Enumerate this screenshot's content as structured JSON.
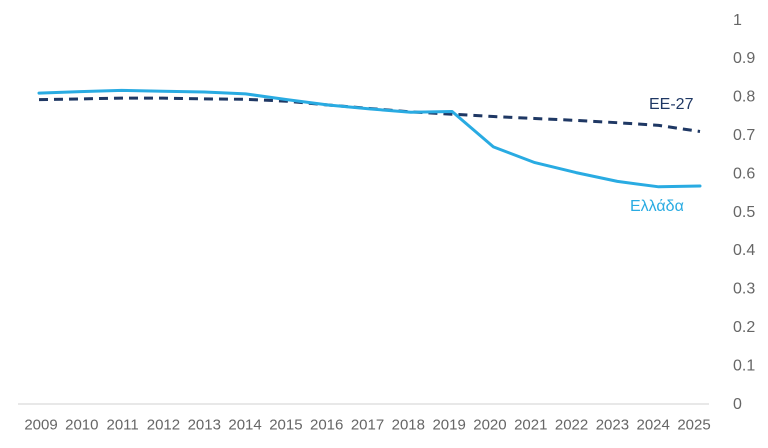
{
  "chart_data": {
    "type": "line",
    "title": "",
    "xlabel": "",
    "ylabel": "",
    "x": [
      2009,
      2010,
      2011,
      2012,
      2013,
      2014,
      2015,
      2016,
      2017,
      2018,
      2019,
      2020,
      2021,
      2022,
      2023,
      2024,
      2025
    ],
    "x_tick_labels": [
      "2009",
      "2010",
      "2011",
      "2012",
      "2013",
      "2014",
      "2015",
      "2016",
      "2017",
      "2018",
      "2019",
      "2020",
      "2021",
      "2022",
      "2023",
      "2024",
      "2025"
    ],
    "series": [
      {
        "name": "EE-27",
        "color": "#1F3864",
        "line_style": "dashed",
        "values": [
          0.79,
          0.792,
          0.794,
          0.794,
          0.792,
          0.791,
          0.786,
          0.776,
          0.767,
          0.758,
          0.752,
          0.746,
          0.741,
          0.736,
          0.73,
          0.723,
          0.707
        ]
      },
      {
        "name": "Ελλάδα",
        "color": "#29ABE2",
        "line_style": "solid",
        "values": [
          0.807,
          0.811,
          0.814,
          0.812,
          0.81,
          0.805,
          0.79,
          0.776,
          0.766,
          0.757,
          0.759,
          0.667,
          0.626,
          0.6,
          0.577,
          0.563,
          0.565
        ]
      }
    ],
    "ylim": [
      0,
      1
    ],
    "yticks": [
      0,
      0.1,
      0.2,
      0.3,
      0.4,
      0.5,
      0.6,
      0.7,
      0.8,
      0.9,
      1
    ],
    "ytick_labels": [
      "0",
      "0.1",
      "0.2",
      "0.3",
      "0.4",
      "0.5",
      "0.6",
      "0.7",
      "0.8",
      "0.9",
      "1"
    ],
    "y_axis_side": "right",
    "grid": false,
    "legend_position": "inline-labels-right",
    "axis_line_color": "#D9D9D9",
    "tick_label_color": "#666666"
  }
}
